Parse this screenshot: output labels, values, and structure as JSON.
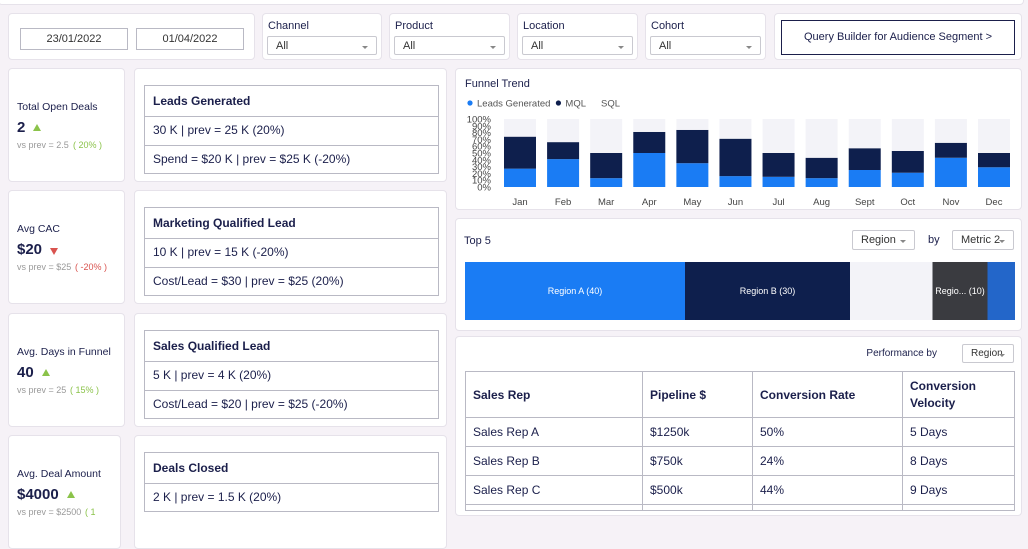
{
  "filters": {
    "date_from": "23/01/2022",
    "date_to": "01/04/2022",
    "dropdowns": [
      {
        "label": "Channel",
        "value": "All"
      },
      {
        "label": "Product",
        "value": "All"
      },
      {
        "label": "Location",
        "value": "All"
      },
      {
        "label": "Cohort",
        "value": "All"
      }
    ],
    "button": "Query Builder for Audience Segment >"
  },
  "kpis": [
    {
      "label": "Total Open Deals",
      "value": "2",
      "prev": "vs prev = 2.5",
      "change": "( 20% )",
      "trend": "up"
    },
    {
      "label": "Avg CAC",
      "value": "$20",
      "prev": "vs prev = $25",
      "change": "( -20% )",
      "trend": "down"
    },
    {
      "label": "Avg. Days in Funnel",
      "value": "40",
      "prev": "vs prev = 25",
      "change": "( 15% )",
      "trend": "up"
    },
    {
      "label": "Avg. Deal Amount",
      "value": "$4000",
      "prev": "vs prev = $2500",
      "change": "( 1",
      "trend": "up"
    }
  ],
  "stages": [
    {
      "title": "Leads Generated",
      "rows": [
        "30 K | prev = 25 K (20%)",
        "Spend = $20 K | prev = $25 K (-20%)"
      ]
    },
    {
      "title": "Marketing Qualified Lead",
      "rows": [
        "10 K | prev = 15 K (-20%)",
        "Cost/Lead = $30 | prev = $25 (20%)"
      ]
    },
    {
      "title": "Sales Qualified Lead",
      "rows": [
        "5 K | prev = 4 K (20%)",
        "Cost/Lead = $20 | prev = $25 (-20%)"
      ]
    },
    {
      "title": "Deals Closed",
      "rows": [
        "2 K | prev = 1.5 K (20%)"
      ]
    }
  ],
  "chart_data": [
    {
      "type": "stacked_bar",
      "title": "Funnel Trend",
      "categories": [
        "Jan",
        "Feb",
        "Mar",
        "Apr",
        "May",
        "Jun",
        "Jul",
        "Aug",
        "Sept",
        "Oct",
        "Nov",
        "Dec"
      ],
      "series": [
        {
          "name": "Leads Generated",
          "color": "#1a7cf4",
          "values": [
            27,
            41,
            13,
            50,
            35,
            16,
            15,
            13,
            25,
            21,
            43,
            29
          ]
        },
        {
          "name": "MQL",
          "color": "#0e1f4d",
          "values": [
            47,
            25,
            37,
            31,
            49,
            55,
            35,
            30,
            32,
            32,
            22,
            21
          ]
        },
        {
          "name": "SQL",
          "color": "#f3f3f8",
          "values": [
            26,
            34,
            50,
            19,
            16,
            29,
            50,
            57,
            43,
            47,
            35,
            50
          ]
        }
      ],
      "ylim": [
        0,
        100
      ],
      "yticks": [
        {
          "value": 0,
          "label": "0%"
        },
        {
          "value": 10,
          "label": "10%"
        },
        {
          "value": 20,
          "label": "20%"
        },
        {
          "value": 30,
          "label": "30%"
        },
        {
          "value": 40,
          "label": "40%"
        },
        {
          "value": 50,
          "label": "50%"
        },
        {
          "value": 60,
          "label": "60%"
        },
        {
          "value": 70,
          "label": "70%"
        },
        {
          "value": 80,
          "label": "80%"
        },
        {
          "value": 90,
          "label": "90%"
        },
        {
          "value": 100,
          "label": "100%"
        }
      ]
    },
    {
      "type": "stacked_hbar",
      "title": "Top 5",
      "values": [
        40,
        30,
        15,
        10,
        5
      ],
      "value_labels": [
        "Region A (40)",
        "Region B (30)",
        null,
        "Regio... (10)",
        null
      ],
      "colors": [
        "#1a7cf4",
        "#0e1f4d",
        "#f3f3f8",
        "#3a3b40",
        "#2366c9"
      ],
      "xlim": [
        0,
        100
      ]
    }
  ],
  "top5_controls": {
    "group": "Region",
    "by": "by",
    "metric": "Metric 2"
  },
  "performance": {
    "label": "Performance by",
    "group": "Region",
    "headers": [
      "Sales Rep",
      "Pipeline $",
      "Conversion Rate",
      "Conversion Velocity"
    ],
    "rows": [
      [
        "Sales Rep A",
        "$1250k",
        "50%",
        "5 Days"
      ],
      [
        "Sales Rep B",
        "$750k",
        "24%",
        "8 Days"
      ],
      [
        "Sales Rep C",
        "$500k",
        "44%",
        "9 Days"
      ]
    ]
  }
}
